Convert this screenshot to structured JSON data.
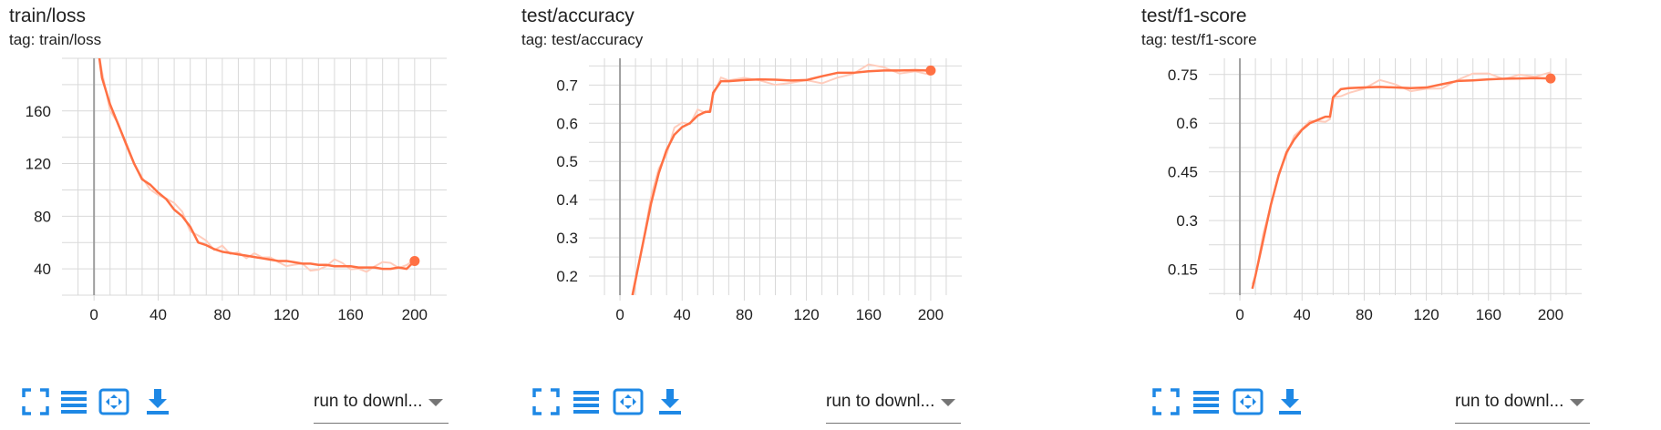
{
  "colors": {
    "accent": "#ff7043",
    "accent_light": "#ffccbc",
    "grid": "#d9d9d9",
    "axis": "#9e9e9e",
    "icon": "#1e88e5"
  },
  "cards": [
    {
      "title": "train/loss",
      "tag": "tag: train/loss",
      "run_label": "run to downl...",
      "toolbar": [
        "fullscreen-icon",
        "list-icon",
        "fit-domain-icon",
        "download-icon"
      ],
      "x_ticks": [
        "0",
        "40",
        "80",
        "120",
        "160",
        "200"
      ],
      "y_ticks": [
        "160",
        "120",
        "80",
        "40"
      ]
    },
    {
      "title": "test/accuracy",
      "tag": "tag: test/accuracy",
      "run_label": "run to downl...",
      "toolbar": [
        "fullscreen-icon",
        "list-icon",
        "fit-domain-icon",
        "download-icon"
      ],
      "x_ticks": [
        "0",
        "40",
        "80",
        "120",
        "160",
        "200"
      ],
      "y_ticks": [
        "0.7",
        "0.6",
        "0.5",
        "0.4",
        "0.3",
        "0.2"
      ]
    },
    {
      "title": "test/f1-score",
      "tag": "tag: test/f1-score",
      "run_label": "run to downl...",
      "toolbar": [
        "fullscreen-icon",
        "list-icon",
        "fit-domain-icon",
        "download-icon"
      ],
      "x_ticks": [
        "0",
        "40",
        "80",
        "120",
        "160",
        "200"
      ],
      "y_ticks": [
        "0.75",
        "0.6",
        "0.45",
        "0.3",
        "0.15"
      ]
    }
  ],
  "chart_data": [
    {
      "type": "line",
      "title": "train/loss",
      "xlabel": "",
      "ylabel": "",
      "xlim": [
        -20,
        220
      ],
      "ylim": [
        20,
        200
      ],
      "grid": true,
      "series": [
        {
          "x": [
            0,
            5,
            10,
            15,
            20,
            25,
            30,
            35,
            40,
            45,
            50,
            55,
            60,
            65,
            70,
            75,
            80,
            85,
            90,
            95,
            100,
            105,
            110,
            115,
            120,
            125,
            130,
            135,
            140,
            145,
            150,
            155,
            160,
            165,
            170,
            175,
            180,
            185,
            190,
            195,
            200
          ],
          "y": [
            230,
            185,
            165,
            150,
            135,
            120,
            108,
            104,
            98,
            93,
            85,
            80,
            72,
            60,
            58,
            55,
            53,
            52,
            51,
            50,
            49,
            48,
            47,
            46,
            46,
            45,
            44,
            44,
            43,
            43,
            42,
            42,
            42,
            41,
            41,
            41,
            40,
            40,
            41,
            40,
            46
          ]
        }
      ]
    },
    {
      "type": "line",
      "title": "test/accuracy",
      "xlabel": "",
      "ylabel": "",
      "xlim": [
        -20,
        220
      ],
      "ylim": [
        0.15,
        0.77
      ],
      "grid": true,
      "series": [
        {
          "x": [
            8,
            10,
            15,
            20,
            25,
            30,
            35,
            40,
            45,
            50,
            55,
            58,
            60,
            65,
            70,
            80,
            90,
            100,
            110,
            120,
            130,
            140,
            150,
            160,
            170,
            180,
            190,
            200
          ],
          "y": [
            0.15,
            0.19,
            0.29,
            0.39,
            0.47,
            0.53,
            0.57,
            0.59,
            0.6,
            0.62,
            0.63,
            0.63,
            0.68,
            0.71,
            0.71,
            0.713,
            0.715,
            0.714,
            0.712,
            0.713,
            0.723,
            0.732,
            0.732,
            0.736,
            0.738,
            0.738,
            0.739,
            0.738
          ]
        }
      ]
    },
    {
      "type": "line",
      "title": "test/f1-score",
      "xlabel": "",
      "ylabel": "",
      "xlim": [
        -20,
        220
      ],
      "ylim": [
        0.07,
        0.8
      ],
      "grid": true,
      "series": [
        {
          "x": [
            8,
            10,
            15,
            20,
            25,
            30,
            35,
            40,
            45,
            50,
            55,
            58,
            60,
            65,
            70,
            80,
            90,
            100,
            110,
            120,
            130,
            140,
            150,
            160,
            170,
            180,
            190,
            200
          ],
          "y": [
            0.09,
            0.13,
            0.24,
            0.35,
            0.44,
            0.51,
            0.55,
            0.58,
            0.6,
            0.61,
            0.62,
            0.62,
            0.68,
            0.705,
            0.708,
            0.71,
            0.712,
            0.71,
            0.708,
            0.71,
            0.72,
            0.73,
            0.732,
            0.735,
            0.737,
            0.738,
            0.739,
            0.738
          ]
        }
      ]
    }
  ]
}
